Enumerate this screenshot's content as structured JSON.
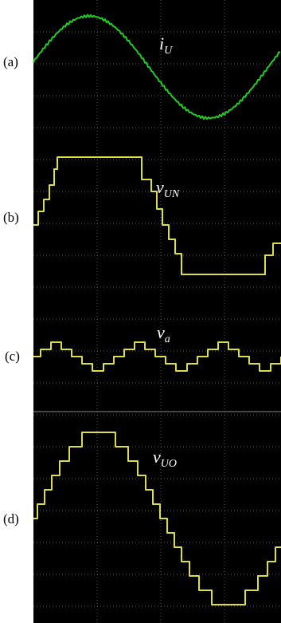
{
  "panels": [
    {
      "label": "(a)",
      "trace": {
        "main": "i",
        "sub": "U"
      }
    },
    {
      "label": "(b)",
      "trace": {
        "main": "v",
        "sub": "UN"
      }
    },
    {
      "label": "(c)",
      "trace": {
        "main": "v",
        "sub": "a"
      }
    },
    {
      "label": "(d)",
      "trace": {
        "main": "v",
        "sub": "UO"
      }
    }
  ]
}
